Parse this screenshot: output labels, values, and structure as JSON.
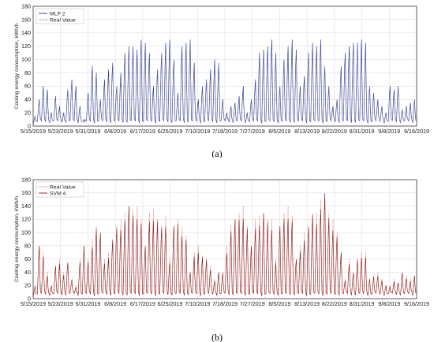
{
  "chart_data": [
    {
      "type": "line",
      "caption": "(a)",
      "ylabel": "Cooling energy consumption, kWh/h",
      "ylim": [
        0,
        180
      ],
      "yticks": [
        0,
        20,
        40,
        60,
        80,
        100,
        120,
        140,
        160,
        180
      ],
      "x_tick_labels": [
        "5/15/2019",
        "5/23/2019",
        "5/31/2019",
        "6/8/2019",
        "6/17/2019",
        "6/25/2019",
        "7/10/2019",
        "7/18/2019",
        "7/27/2019",
        "8/5/2019",
        "8/13/2019",
        "8/22/2019",
        "8/31/2019",
        "9/8/2019",
        "9/16/2019"
      ],
      "grid": true,
      "legend_position": "top-left",
      "series": [
        {
          "name": "MLP 2",
          "color": "#1f2fa8",
          "style": "solid"
        },
        {
          "name": "Real Value",
          "color": "#6a6a6a",
          "style": "dotted"
        }
      ],
      "daily_peak_envelope": [
        15,
        40,
        60,
        55,
        20,
        45,
        30,
        20,
        55,
        70,
        60,
        30,
        10,
        50,
        90,
        80,
        40,
        70,
        85,
        95,
        60,
        80,
        110,
        120,
        120,
        115,
        130,
        125,
        110,
        60,
        85,
        110,
        125,
        130,
        100,
        50,
        120,
        125,
        130,
        95,
        40,
        60,
        70,
        85,
        100,
        95,
        40,
        20,
        30,
        35,
        45,
        60,
        20,
        40,
        70,
        110,
        115,
        120,
        130,
        110,
        60,
        100,
        120,
        130,
        115,
        60,
        75,
        110,
        125,
        120,
        130,
        90,
        60,
        30,
        40,
        90,
        110,
        120,
        125,
        125,
        130,
        125,
        60,
        50,
        40,
        30,
        20,
        60,
        55,
        60,
        25,
        30,
        35,
        40
      ]
    },
    {
      "type": "line",
      "caption": "(b)",
      "ylabel": "Cooling energy consumption, kWh/h",
      "ylim": [
        0,
        180
      ],
      "yticks": [
        0,
        20,
        40,
        60,
        80,
        100,
        120,
        140,
        160,
        180
      ],
      "x_tick_labels": [
        "5/15/2019",
        "5/23/2019",
        "5/31/2019",
        "6/8/2019",
        "6/17/2019",
        "6/25/2019",
        "7/10/2019",
        "7/18/2019",
        "7/27/2019",
        "8/5/2019",
        "8/13/2019",
        "8/22/2019",
        "8/31/2019",
        "9/8/2019",
        "9/16/2019"
      ],
      "grid": true,
      "legend_position": "top-left",
      "series": [
        {
          "name": "Real Value",
          "color": "#e06060",
          "style": "dotted"
        },
        {
          "name": "SVM 4",
          "color": "#8b1a1a",
          "style": "solid"
        }
      ],
      "daily_peak_envelope": [
        20,
        80,
        70,
        40,
        20,
        50,
        60,
        40,
        55,
        30,
        20,
        60,
        80,
        60,
        90,
        110,
        100,
        60,
        70,
        90,
        110,
        120,
        130,
        140,
        135,
        140,
        120,
        80,
        130,
        135,
        120,
        110,
        125,
        60,
        110,
        120,
        110,
        95,
        40,
        70,
        80,
        65,
        60,
        50,
        30,
        40,
        40,
        80,
        110,
        120,
        130,
        140,
        110,
        80,
        120,
        125,
        130,
        120,
        120,
        60,
        110,
        130,
        140,
        125,
        60,
        80,
        100,
        110,
        130,
        130,
        150,
        160,
        130,
        120,
        100,
        70,
        30,
        60,
        40,
        60,
        70,
        70,
        30,
        35,
        40,
        30,
        20,
        20,
        30,
        25,
        40,
        35,
        30,
        35
      ]
    }
  ]
}
